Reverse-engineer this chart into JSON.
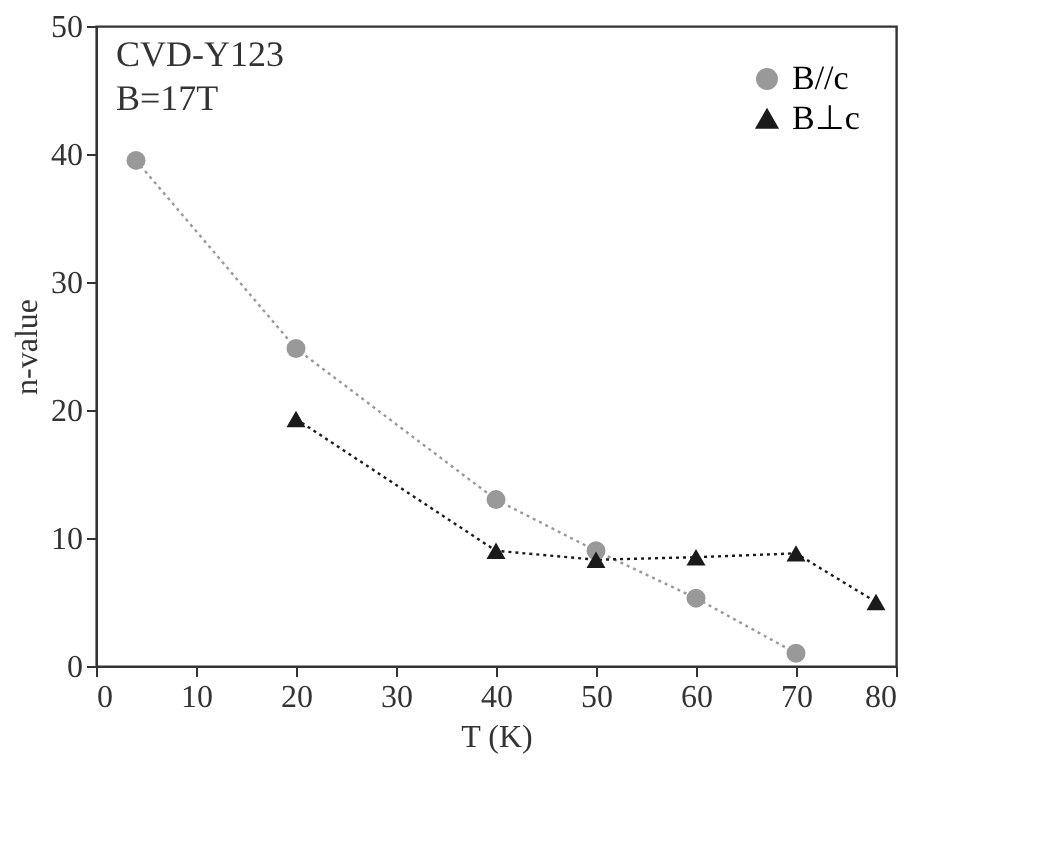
{
  "chart_data": {
    "type": "line",
    "xlabel": "T (K)",
    "ylabel": "n-value",
    "annotations": [
      "CVD-Y123",
      "B=17T"
    ],
    "series": [
      {
        "name": "B//c",
        "color": "#999999",
        "marker": "circle",
        "x": [
          4,
          20,
          40,
          50,
          60,
          70
        ],
        "values": [
          39.5,
          24.8,
          13,
          9,
          5.3,
          1
        ]
      },
      {
        "name": "B⊥c",
        "color": "#1a1a1a",
        "marker": "triangle",
        "x": [
          20,
          40,
          50,
          60,
          70,
          78
        ],
        "values": [
          19.3,
          9,
          8.3,
          8.5,
          8.8,
          5
        ]
      }
    ],
    "xlim": [
      0,
      80
    ],
    "xticks": [
      0,
      10,
      20,
      30,
      40,
      50,
      60,
      70,
      80
    ],
    "ylim": [
      0,
      50
    ],
    "yticks": [
      0,
      10,
      20,
      30,
      40,
      50
    ],
    "line_style": "dotted",
    "grid": false,
    "legend": "top right"
  }
}
